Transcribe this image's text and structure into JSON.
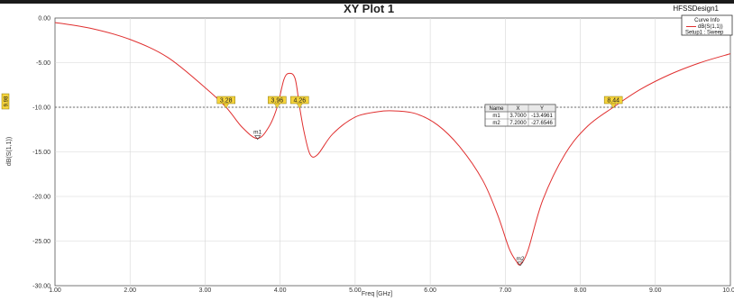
{
  "plot": {
    "title": "XY Plot 1",
    "design": "HFSSDesign1",
    "xlabel": "Freq [GHz]",
    "ylabel": "dB(S(1,1))",
    "y_marker_label": "9.98"
  },
  "legend": {
    "header": "Curve Info",
    "series_name": "dB(S(1,1))",
    "series_setup": "Setup1 : Sweep"
  },
  "marker_table": {
    "headers": [
      "Name",
      "X",
      "Y"
    ],
    "rows": [
      [
        "m1",
        "3.7000",
        "-13.4961"
      ],
      [
        "m2",
        "7.2000",
        "-27.6546"
      ]
    ]
  },
  "chart_data": {
    "type": "line",
    "title": "XY Plot 1",
    "xlabel": "Freq [GHz]",
    "ylabel": "dB(S(1,1))",
    "xlim": [
      1.0,
      10.0
    ],
    "ylim": [
      -30.0,
      0.0
    ],
    "x_ticks": [
      "1.00",
      "2.00",
      "3.00",
      "4.00",
      "5.00",
      "6.00",
      "7.00",
      "8.00",
      "9.00",
      "10.00"
    ],
    "y_ticks": [
      "0.00",
      "-5.00",
      "-10.00",
      "-15.00",
      "-20.00",
      "-25.00",
      "-30.00"
    ],
    "reference_line_y": -10.0,
    "series": [
      {
        "name": "dB(S(1,1))",
        "color": "#e03030",
        "x": [
          1.0,
          1.5,
          2.0,
          2.5,
          3.0,
          3.28,
          3.5,
          3.7,
          3.85,
          3.96,
          4.05,
          4.12,
          4.2,
          4.26,
          4.32,
          4.4,
          4.5,
          4.7,
          5.0,
          5.3,
          5.5,
          5.8,
          6.1,
          6.4,
          6.7,
          6.9,
          7.05,
          7.15,
          7.2,
          7.3,
          7.5,
          7.8,
          8.1,
          8.44,
          8.8,
          9.2,
          9.6,
          10.0
        ],
        "y": [
          -0.5,
          -1.2,
          -2.4,
          -4.4,
          -7.8,
          -10.0,
          -12.3,
          -13.5,
          -12.2,
          -10.0,
          -6.9,
          -6.2,
          -6.8,
          -10.0,
          -12.8,
          -15.3,
          -15.3,
          -13.0,
          -11.1,
          -10.5,
          -10.4,
          -10.7,
          -12.0,
          -14.5,
          -18.2,
          -22.1,
          -25.8,
          -27.3,
          -27.6,
          -26.1,
          -20.4,
          -15.2,
          -12.1,
          -10.0,
          -8.0,
          -6.3,
          -5.0,
          -4.0
        ]
      }
    ],
    "markers": [
      {
        "name": "m1",
        "x": 3.7,
        "y": -13.4961
      },
      {
        "name": "m2",
        "x": 7.2,
        "y": -27.6546
      }
    ],
    "flags": [
      {
        "label": "3.28",
        "x": 3.28,
        "y": -10.0
      },
      {
        "label": "3.96",
        "x": 3.96,
        "y": -10.0
      },
      {
        "label": "4.26",
        "x": 4.26,
        "y": -10.0
      },
      {
        "label": "8.44",
        "x": 8.44,
        "y": -10.0
      }
    ]
  }
}
